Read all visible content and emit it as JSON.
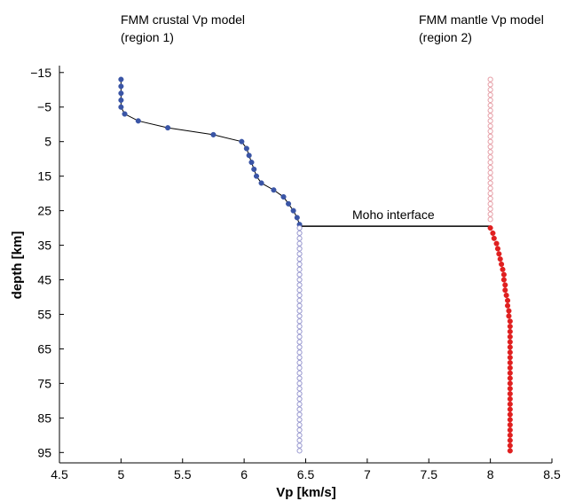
{
  "chart_data": {
    "type": "scatter",
    "title": "",
    "xlabel": "Vp [km/s]",
    "ylabel": "depth [km]",
    "xlim": [
      4.5,
      8.5
    ],
    "ylim": [
      -17,
      98
    ],
    "y_reversed": true,
    "grid": false,
    "legend": "none",
    "xticks": [
      4.5,
      5,
      5.5,
      6,
      6.5,
      7,
      7.5,
      8,
      8.5
    ],
    "yticks": [
      -15,
      -5,
      5,
      15,
      25,
      35,
      45,
      55,
      65,
      75,
      85,
      95
    ],
    "annotations": [
      {
        "text": "FMM crustal Vp model",
        "line2": "(region 1)"
      },
      {
        "text": "FMM mantle Vp model",
        "line2": "(region 2)"
      },
      {
        "text": "Moho interface"
      }
    ],
    "series": [
      {
        "key": "crust",
        "color": "#3a55a6",
        "marker": "filled",
        "line": true,
        "points": [
          [
            5.0,
            -13
          ],
          [
            5.0,
            -11
          ],
          [
            5.0,
            -9
          ],
          [
            5.0,
            -7
          ],
          [
            5.0,
            -5
          ],
          [
            5.03,
            -3
          ],
          [
            5.14,
            -1
          ],
          [
            5.38,
            1
          ],
          [
            5.75,
            3
          ],
          [
            5.98,
            5
          ],
          [
            6.02,
            7
          ],
          [
            6.04,
            9
          ],
          [
            6.06,
            11
          ],
          [
            6.08,
            13
          ],
          [
            6.1,
            15
          ],
          [
            6.14,
            17
          ],
          [
            6.24,
            19
          ],
          [
            6.32,
            21
          ],
          [
            6.36,
            23
          ],
          [
            6.4,
            25
          ],
          [
            6.43,
            27
          ],
          [
            6.45,
            29
          ]
        ]
      },
      {
        "key": "crust-extension",
        "color": "#9a9ad0",
        "marker": "open",
        "line": false,
        "x": 6.45,
        "y_start": 30,
        "y_end": 95,
        "y_step": 1.5
      },
      {
        "key": "mantle-upper",
        "color": "#e6a0a8",
        "marker": "open",
        "line": false,
        "x": 8.0,
        "y_start": -13,
        "y_end": 28.5,
        "y_step": 1.5
      },
      {
        "key": "mantle",
        "color": "#e02020",
        "marker": "filled",
        "line": false,
        "points": [
          [
            8.0,
            30
          ],
          [
            8.02,
            31.5
          ],
          [
            8.03,
            33
          ],
          [
            8.05,
            34.5
          ],
          [
            8.06,
            36
          ],
          [
            8.07,
            37.5
          ],
          [
            8.08,
            39
          ],
          [
            8.09,
            40.5
          ],
          [
            8.1,
            42
          ],
          [
            8.11,
            43.5
          ],
          [
            8.11,
            45
          ],
          [
            8.12,
            46.5
          ],
          [
            8.12,
            48
          ],
          [
            8.13,
            49.5
          ],
          [
            8.14,
            51
          ],
          [
            8.14,
            52.5
          ],
          [
            8.15,
            54
          ],
          [
            8.15,
            55.5
          ],
          [
            8.16,
            57
          ],
          [
            8.16,
            58.5
          ],
          [
            8.16,
            60
          ],
          [
            8.16,
            61.5
          ],
          [
            8.16,
            63
          ],
          [
            8.16,
            64.5
          ],
          [
            8.16,
            66
          ],
          [
            8.16,
            67.5
          ],
          [
            8.16,
            69
          ],
          [
            8.16,
            70.5
          ],
          [
            8.16,
            72
          ],
          [
            8.16,
            73.5
          ],
          [
            8.16,
            75
          ],
          [
            8.16,
            76.5
          ],
          [
            8.16,
            78
          ],
          [
            8.16,
            79.5
          ],
          [
            8.16,
            81
          ],
          [
            8.16,
            82.5
          ],
          [
            8.16,
            84
          ],
          [
            8.16,
            85.5
          ],
          [
            8.16,
            87
          ],
          [
            8.16,
            88.5
          ],
          [
            8.16,
            90
          ],
          [
            8.16,
            91.5
          ],
          [
            8.16,
            93
          ],
          [
            8.16,
            94.5
          ]
        ]
      }
    ],
    "moho": {
      "x_start": 6.45,
      "x_end": 8.0,
      "y": 29.5
    }
  }
}
